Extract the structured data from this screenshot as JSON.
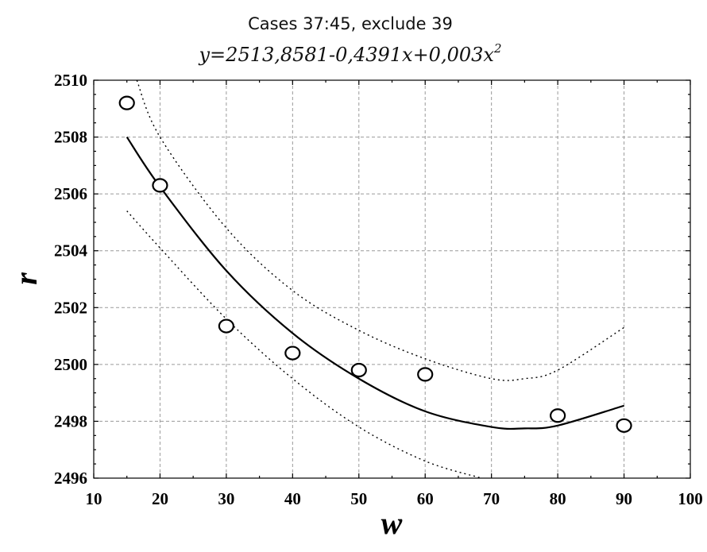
{
  "chart_data": {
    "type": "scatter",
    "title": "Cases 37:45, exclude 39",
    "subtitle_prefix": "y=2513,8581-0,4391x+0,003x",
    "subtitle_exp": "2",
    "xlabel": "w",
    "ylabel": "r",
    "xlim": [
      10,
      100
    ],
    "ylim": [
      2496,
      2510
    ],
    "xticks": [
      "10",
      "20",
      "30",
      "40",
      "50",
      "60",
      "70",
      "80",
      "90",
      "100"
    ],
    "yticks": [
      "2496",
      "2498",
      "2500",
      "2502",
      "2504",
      "2506",
      "2508",
      "2510"
    ],
    "grid": true,
    "points": {
      "x": [
        15,
        20,
        30,
        40,
        50,
        60,
        80,
        90
      ],
      "y": [
        2509.2,
        2506.3,
        2501.35,
        2500.4,
        2499.8,
        2499.65,
        2498.2,
        2497.85
      ]
    },
    "fit": {
      "x": [
        15,
        20,
        30,
        40,
        50,
        60,
        70,
        75,
        80,
        90
      ],
      "y": [
        2508.0,
        2506.25,
        2503.3,
        2501.1,
        2499.5,
        2498.35,
        2497.8,
        2497.75,
        2497.85,
        2498.55
      ]
    },
    "ci_upper": {
      "x": [
        16.5,
        20,
        30,
        40,
        50,
        60,
        70,
        75,
        80,
        90
      ],
      "y": [
        2510.0,
        2508.0,
        2504.8,
        2502.6,
        2501.2,
        2500.2,
        2499.5,
        2499.5,
        2499.8,
        2501.3
      ]
    },
    "ci_lower": {
      "x": [
        15,
        20,
        30,
        40,
        50,
        60,
        68.5
      ],
      "y": [
        2505.4,
        2504.1,
        2501.6,
        2499.5,
        2497.8,
        2496.6,
        2496.0
      ]
    }
  }
}
